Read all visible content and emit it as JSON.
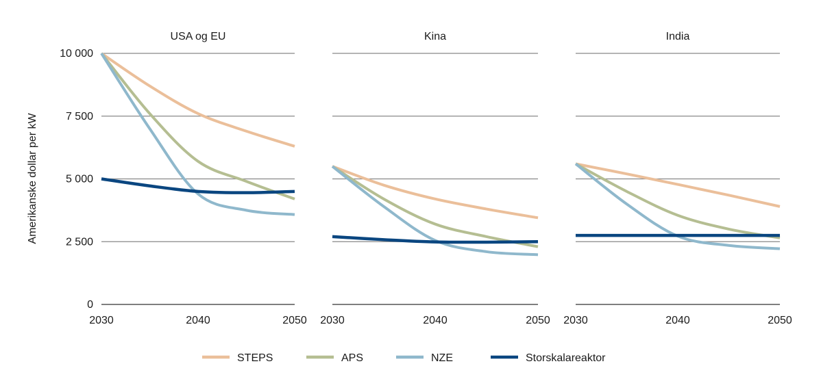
{
  "chart_data": {
    "type": "line",
    "ylabel": "Amerikanske dollar per kW",
    "ylim": [
      0,
      10000
    ],
    "yticks": [
      0,
      2500,
      5000,
      7500,
      10000
    ],
    "ytick_labels": [
      "0",
      "2 500",
      "5 000",
      "7 500",
      "10 000"
    ],
    "x": [
      2030,
      2035,
      2040,
      2045,
      2050
    ],
    "xticks": [
      "2030",
      "2040",
      "2050"
    ],
    "grid": true,
    "legend_position": "bottom",
    "colors": {
      "STEPS": "#ebbf9a",
      "APS": "#b5be92",
      "NZE": "#8fb8cc",
      "Storskalareaktor": "#0a4680"
    },
    "legend": [
      "STEPS",
      "APS",
      "NZE",
      "Storskalareaktor"
    ],
    "panels": [
      {
        "title": "USA og EU",
        "series": [
          {
            "name": "STEPS",
            "values": [
              10000,
              8700,
              7600,
              6900,
              6300
            ]
          },
          {
            "name": "APS",
            "values": [
              10000,
              7600,
              5700,
              4900,
              4200
            ]
          },
          {
            "name": "NZE",
            "values": [
              10000,
              7000,
              4400,
              3750,
              3580
            ]
          },
          {
            "name": "Storskalareaktor",
            "values": [
              5000,
              4720,
              4500,
              4450,
              4500
            ]
          }
        ]
      },
      {
        "title": "Kina",
        "series": [
          {
            "name": "STEPS",
            "values": [
              5500,
              4750,
              4200,
              3800,
              3450
            ]
          },
          {
            "name": "APS",
            "values": [
              5500,
              4200,
              3200,
              2700,
              2300
            ]
          },
          {
            "name": "NZE",
            "values": [
              5500,
              3900,
              2550,
              2100,
              1980
            ]
          },
          {
            "name": "Storskalareaktor",
            "values": [
              2700,
              2580,
              2490,
              2480,
              2500
            ]
          }
        ]
      },
      {
        "title": "India",
        "series": [
          {
            "name": "STEPS",
            "values": [
              5600,
              5200,
              4780,
              4350,
              3900
            ]
          },
          {
            "name": "APS",
            "values": [
              5600,
              4500,
              3550,
              3000,
              2650
            ]
          },
          {
            "name": "NZE",
            "values": [
              5600,
              4000,
              2720,
              2350,
              2220
            ]
          },
          {
            "name": "Storskalareaktor",
            "values": [
              2750,
              2750,
              2750,
              2750,
              2750
            ]
          }
        ]
      }
    ]
  }
}
